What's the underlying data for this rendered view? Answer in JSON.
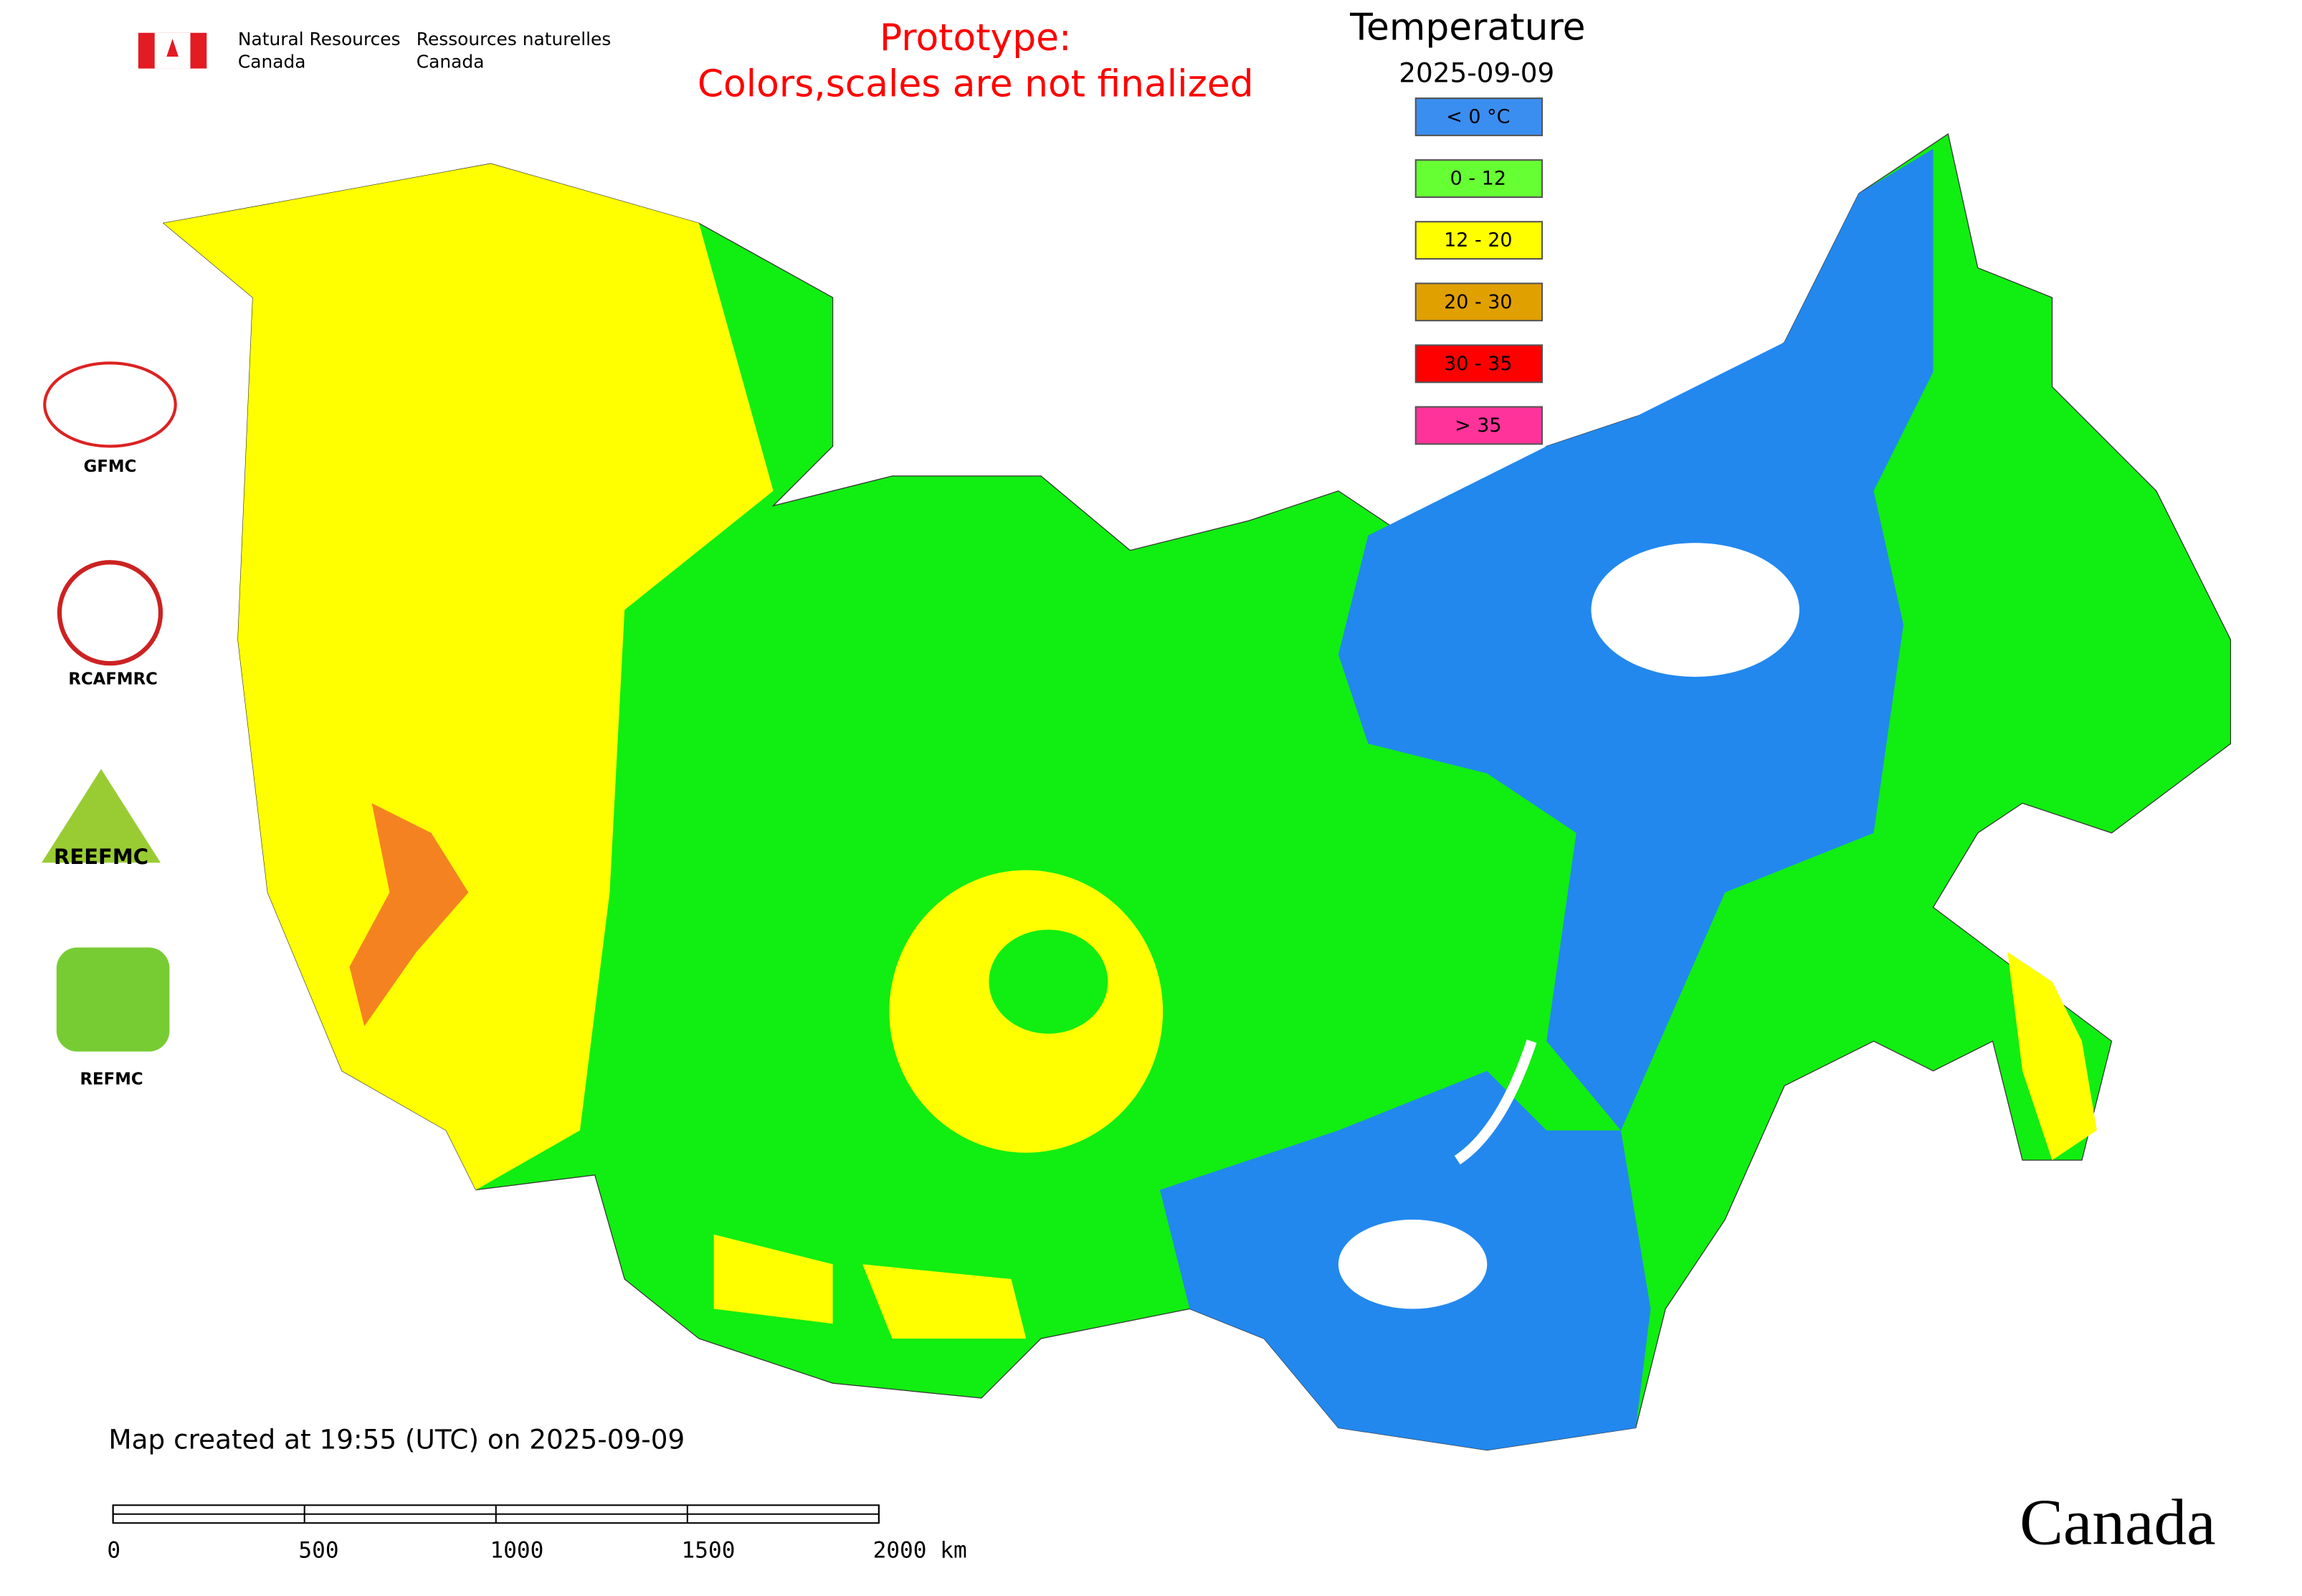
{
  "header": {
    "dept_en_line1": "Natural Resources",
    "dept_en_line2": "Canada",
    "dept_fr_line1": "Ressources naturelles",
    "dept_fr_line2": "Canada"
  },
  "notice": {
    "line1": "Prototype:",
    "line2": "Colors,scales are not finalized"
  },
  "legend": {
    "title": "Temperature",
    "date": "2025-09-09",
    "items": [
      {
        "label": "< 0 °C",
        "color": "#3a8ef0"
      },
      {
        "label": "0 - 12",
        "color": "#66ff33"
      },
      {
        "label": "12 - 20",
        "color": "#ffff00"
      },
      {
        "label": "20 - 30",
        "color": "#e0a000"
      },
      {
        "label": "30 - 35",
        "color": "#ff0000"
      },
      {
        "label": "> 35",
        "color": "#ff3399"
      }
    ]
  },
  "logos": [
    {
      "label": "GFMC"
    },
    {
      "label": "RCAFMRC"
    },
    {
      "label": "REEFMC"
    },
    {
      "label": "REFMC"
    }
  ],
  "footer": {
    "created": "Map created at 19:55 (UTC) on 2025-09-09",
    "scale_ticks": [
      0,
      500,
      1000,
      1500,
      {
        "value": 2000,
        "label": "2000 km"
      }
    ],
    "wordmark": "Canada"
  }
}
